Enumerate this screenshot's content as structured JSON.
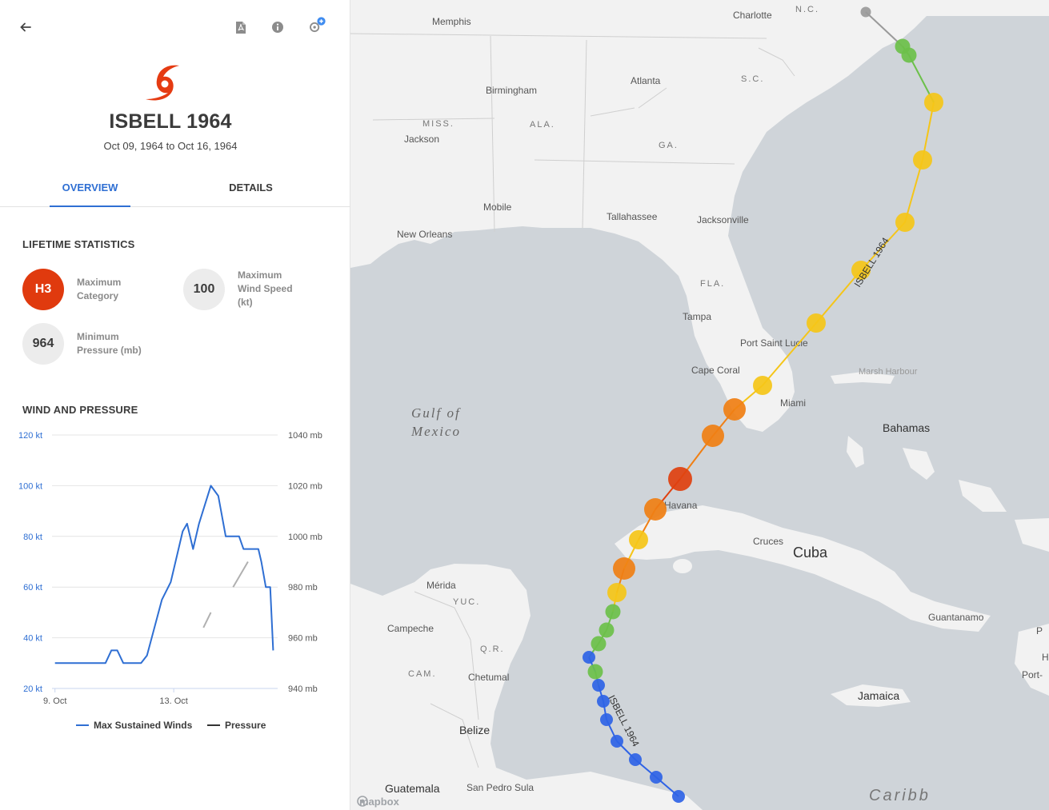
{
  "panel": {
    "storm_name": "ISBELL 1964",
    "dates": "Oct 09, 1964 to Oct 16, 1964",
    "tabs": [
      "OVERVIEW",
      "DETAILS"
    ],
    "active_tab": "OVERVIEW",
    "lifetime_title": "LIFETIME STATISTICS",
    "stats": {
      "max_category": {
        "value": "H3",
        "label_1": "Maximum",
        "label_2": "Category",
        "color": "#e03a0e"
      },
      "max_wind": {
        "value": "100",
        "label_1": "Maximum",
        "label_2": "Wind Speed",
        "label_3": "(kt)"
      },
      "min_pressure": {
        "value": "964",
        "label_1": "Minimum",
        "label_2": "Pressure (mb)"
      }
    },
    "wind_pressure_title": "WIND AND PRESSURE",
    "legend": {
      "winds": "Max Sustained Winds",
      "pressure": "Pressure"
    }
  },
  "chart_data": {
    "type": "line",
    "x_tick_labels": [
      "9. Oct",
      "13. Oct"
    ],
    "y_left": {
      "ticks": [
        "20 kt",
        "40 kt",
        "60 kt",
        "80 kt",
        "100 kt",
        "120 kt"
      ],
      "ylim": [
        20,
        120
      ],
      "unit": "kt"
    },
    "y_right": {
      "ticks": [
        "940 mb",
        "960 mb",
        "980 mb",
        "1000 mb",
        "1020 mb",
        "1040 mb"
      ],
      "ylim": [
        940,
        1040
      ],
      "unit": "mb"
    },
    "x_range_days": [
      8.9,
      16.5
    ],
    "series": [
      {
        "name": "Max Sustained Winds",
        "axis": "left",
        "color": "#2f6fd3",
        "points": [
          [
            9.0,
            30
          ],
          [
            10.7,
            30
          ],
          [
            10.9,
            35
          ],
          [
            11.1,
            35
          ],
          [
            11.3,
            30
          ],
          [
            11.9,
            30
          ],
          [
            12.1,
            33
          ],
          [
            12.6,
            55
          ],
          [
            12.9,
            62
          ],
          [
            13.3,
            82
          ],
          [
            13.45,
            85
          ],
          [
            13.65,
            75
          ],
          [
            13.85,
            85
          ],
          [
            14.25,
            100
          ],
          [
            14.5,
            96
          ],
          [
            14.75,
            80
          ],
          [
            15.2,
            80
          ],
          [
            15.35,
            75
          ],
          [
            15.85,
            75
          ],
          [
            15.95,
            70
          ],
          [
            16.1,
            60
          ],
          [
            16.25,
            60
          ],
          [
            16.35,
            35
          ]
        ]
      },
      {
        "name": "Pressure",
        "axis": "right",
        "color": "#b0b0b0",
        "segments": [
          [
            [
              14.0,
              964
            ],
            [
              14.25,
              970
            ]
          ],
          [
            [
              15.0,
              980
            ],
            [
              15.5,
              990
            ]
          ]
        ]
      }
    ]
  },
  "map": {
    "labels": {
      "memphis": "Memphis",
      "charlotte": "Charlotte",
      "nc": "N.C.",
      "birmingham": "Birmingham",
      "atlanta": "Atlanta",
      "sc": "S.C.",
      "miss": "MISS.",
      "ala": "ALA.",
      "ga": "GA.",
      "jackson": "Jackson",
      "mobile": "Mobile",
      "tallahassee": "Tallahassee",
      "jacksonville": "Jacksonville",
      "new_orleans": "New Orleans",
      "fla": "FLA.",
      "tampa": "Tampa",
      "port_saint_lucie": "Port Saint Lucie",
      "cape_coral": "Cape Coral",
      "miami": "Miami",
      "marsh_harbour": "Marsh Harbour",
      "bahamas": "Bahamas",
      "gulf_1": "Gulf of",
      "gulf_2": "Mexico",
      "havana": "Havana",
      "cruces": "Cruces",
      "cuba": "Cuba",
      "merida": "Mérida",
      "yuc": "YUC.",
      "campeche": "Campeche",
      "qr": "Q.R.",
      "cam": "CAM.",
      "chetumal": "Chetumal",
      "belize": "Belize",
      "guatemala": "Guatemala",
      "san_pedro_sula": "San Pedro Sula",
      "jamaica": "Jamaica",
      "guantanamo": "Guantanamo",
      "caribbean": "Caribb",
      "port": "Port-",
      "h": "H",
      "pc": "P",
      "track_label": "ISBELL 1964",
      "mapbox": "mapbox"
    },
    "colors": {
      "land": "#f2f2f2",
      "water": "#cfd4d9",
      "td": "#2f63e6",
      "ts": "#6cc04a",
      "h1": "#f5c518",
      "h2": "#f07f14",
      "h3": "#e0400f",
      "ex": "#9a9a9a"
    }
  }
}
